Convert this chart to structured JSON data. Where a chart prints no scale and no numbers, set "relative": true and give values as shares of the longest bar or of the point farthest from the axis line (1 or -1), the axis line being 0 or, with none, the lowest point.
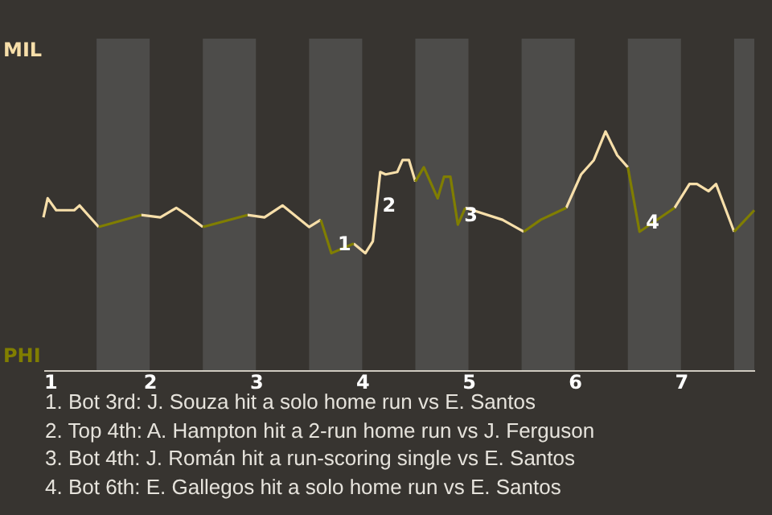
{
  "chart_data": {
    "type": "line",
    "series": [
      {
        "name": "MIL",
        "color": "#f7dfaa",
        "x": [
          1.0,
          1.04,
          1.12,
          1.29,
          1.34,
          1.52,
          1.7,
          1.92,
          2.1,
          2.25,
          2.35,
          2.5,
          2.7,
          2.92,
          3.08,
          3.25,
          3.5,
          3.61,
          3.7,
          3.92,
          4.03,
          4.1,
          4.17,
          4.22,
          4.33,
          4.38,
          4.44,
          4.5,
          4.7,
          4.97,
          5.32,
          5.52,
          5.6,
          5.92,
          6.06,
          6.18,
          6.29,
          6.4,
          6.5,
          6.7,
          6.94,
          7.08,
          7.15,
          7.26,
          7.33,
          7.5
        ],
        "values": [
          0.64,
          0.72,
          0.67,
          0.67,
          0.69,
          0.6,
          null,
          0.65,
          0.64,
          0.68,
          0.65,
          0.6,
          null,
          0.65,
          0.64,
          0.69,
          0.6,
          0.63,
          null,
          0.53,
          0.49,
          0.54,
          0.83,
          0.82,
          0.83,
          0.88,
          0.88,
          0.79,
          null,
          0.68,
          0.63,
          0.58,
          null,
          0.68,
          0.82,
          0.88,
          1,
          0.9,
          0.85,
          null,
          0.68,
          0.78,
          0.78,
          0.75,
          0.78,
          0.58
        ]
      },
      {
        "name": "PHI",
        "color": "#807e00",
        "x": [
          1.52,
          1.92,
          2.2,
          2.5,
          2.92,
          3.3,
          3.61,
          3.71,
          3.92,
          4.2,
          4.5,
          4.58,
          4.71,
          4.77,
          4.83,
          4.9,
          4.97,
          5.2,
          5.52,
          5.68,
          5.92,
          6.2,
          6.5,
          6.61,
          6.94,
          7.0,
          7.5,
          7.69
        ],
        "values": [
          0.6,
          0.65,
          null,
          0.6,
          0.65,
          null,
          0.63,
          0.49,
          0.53,
          null,
          0.79,
          0.85,
          0.72,
          0.81,
          0.81,
          0.61,
          0.68,
          null,
          0.58,
          0.63,
          0.68,
          null,
          0.85,
          0.58,
          0.68,
          null,
          0.58,
          0.67
        ]
      }
    ],
    "relative": true,
    "xlim": [
      1,
      7.69
    ],
    "xticks": [
      1,
      2,
      3,
      4,
      5,
      6,
      7
    ],
    "bands": [
      {
        "axis": "x",
        "from": 1.5,
        "to": 2,
        "color": "#4d4c4a"
      },
      {
        "axis": "x",
        "from": 2.5,
        "to": 3,
        "color": "#4d4c4a"
      },
      {
        "axis": "x",
        "from": 3.5,
        "to": 4,
        "color": "#4d4c4a"
      },
      {
        "axis": "x",
        "from": 4.5,
        "to": 5,
        "color": "#4d4c4a"
      },
      {
        "axis": "x",
        "from": 5.5,
        "to": 6,
        "color": "#4d4c4a"
      },
      {
        "axis": "x",
        "from": 6.5,
        "to": 7,
        "color": "#4d4c4a"
      },
      {
        "axis": "x",
        "from": 7.5,
        "to": 7.69,
        "color": "#4d4c4a"
      }
    ],
    "annotations": [
      {
        "text": "1",
        "x": 3.71,
        "y": 0.49
      },
      {
        "text": "2",
        "x": 4.13,
        "y": 0.65
      },
      {
        "text": "3",
        "x": 4.9,
        "y": 0.61
      },
      {
        "text": "4",
        "x": 6.61,
        "y": 0.58
      },
      "1. Bot 3rd: J. Souza hit a solo home run vs E. Santos",
      "2. Top 4th: A. Hampton hit a 2-run home run vs J. Ferguson",
      "3. Bot 4th: J. Román hit a run-scoring single vs E. Santos",
      "4. Bot 6th: E. Gallegos hit a solo home run vs E. Santos"
    ],
    "legend": "left",
    "marker": "none",
    "line_style": "solid"
  }
}
